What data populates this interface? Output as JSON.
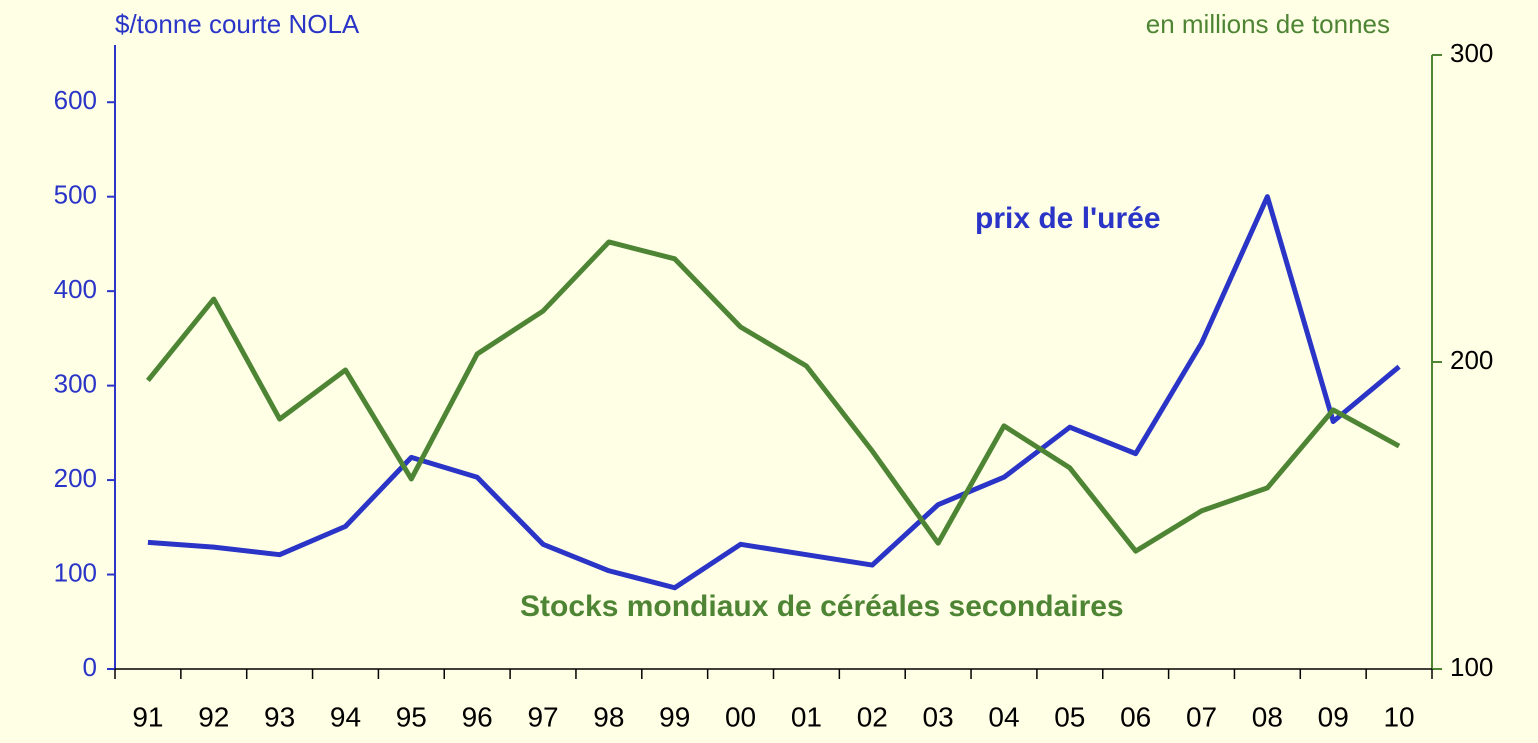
{
  "chart_data": {
    "type": "line",
    "ylabel": "$/tonne courte NOLA",
    "y2label": "en millions de tonnes",
    "categories": [
      "91",
      "92",
      "93",
      "94",
      "95",
      "96",
      "97",
      "98",
      "99",
      "00",
      "01",
      "02",
      "03",
      "04",
      "05",
      "06",
      "07",
      "08",
      "09",
      "10"
    ],
    "series": [
      {
        "name": "prix de l'urée",
        "color": "#2a35c8",
        "axis": "y",
        "values": [
          134,
          129,
          121,
          151,
          224,
          203,
          132,
          104,
          86,
          132,
          121,
          110,
          174,
          203,
          256,
          228,
          345,
          500,
          262,
          320
        ]
      },
      {
        "name": "Stocks mondiaux de céréales secondaires",
        "color": "#4e8535",
        "axis": "y2",
        "values": [
          194,
          220.5,
          181.4,
          197.4,
          161.9,
          202.6,
          216.6,
          239.1,
          233.6,
          211.4,
          198.7,
          171,
          141,
          179.2,
          165.5,
          138.4,
          151.5,
          159,
          184.4,
          172.6
        ]
      }
    ],
    "ylim": [
      0,
      650
    ],
    "yticks": [
      0,
      100,
      200,
      300,
      400,
      500,
      600
    ],
    "y2lim": [
      100,
      300
    ],
    "y2ticks": [
      100,
      200,
      300
    ]
  }
}
